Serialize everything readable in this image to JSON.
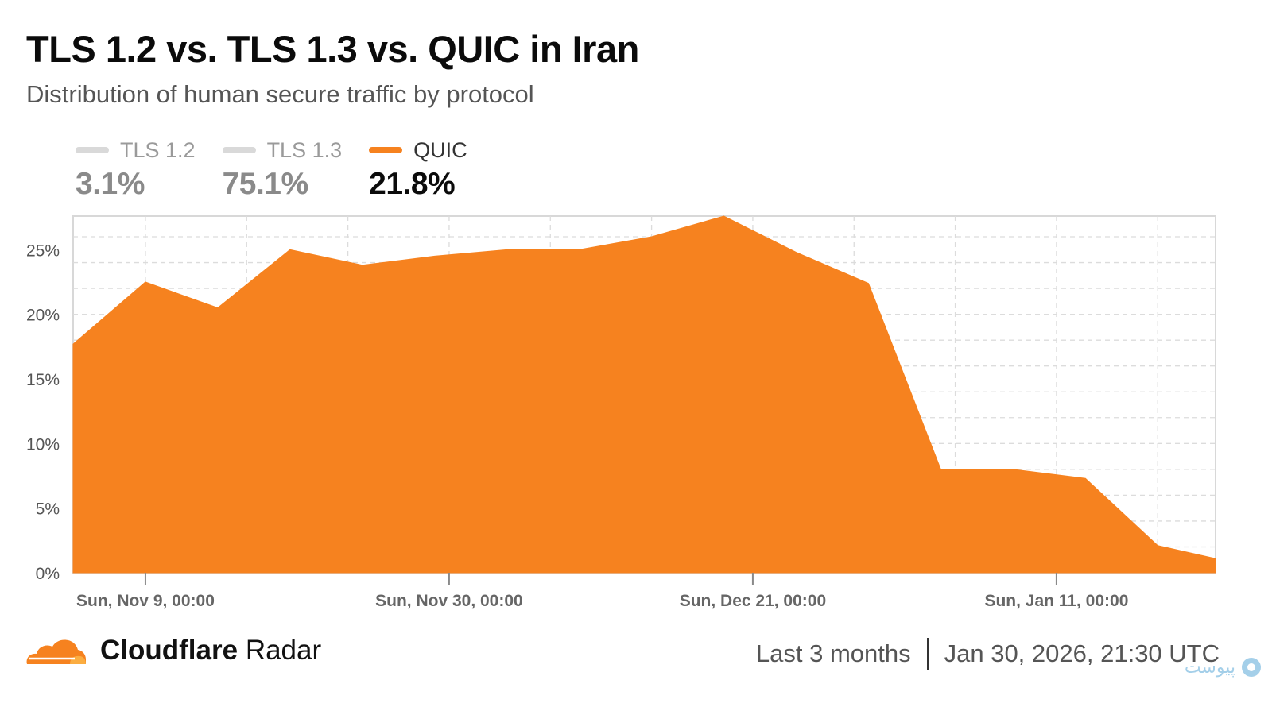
{
  "title": "TLS 1.2 vs. TLS 1.3 vs. QUIC in Iran",
  "subtitle": "Distribution of human secure traffic by protocol",
  "legend": [
    {
      "label": "TLS 1.2",
      "value": "3.1%",
      "color": "#d9d9d9",
      "state": "muted"
    },
    {
      "label": "TLS 1.3",
      "value": "75.1%",
      "color": "#d9d9d9",
      "state": "muted"
    },
    {
      "label": "QUIC",
      "value": "21.8%",
      "color": "#f6821f",
      "state": "active"
    }
  ],
  "chart_data": {
    "type": "area",
    "series": [
      {
        "name": "QUIC",
        "color": "#f6821f",
        "x": [
          "2025-11-04",
          "2025-11-09",
          "2025-11-14",
          "2025-11-19",
          "2025-11-24",
          "2025-11-29",
          "2025-12-04",
          "2025-12-09",
          "2025-12-14",
          "2025-12-19",
          "2025-12-24",
          "2025-12-29",
          "2026-01-03",
          "2026-01-08",
          "2026-01-13",
          "2026-01-18",
          "2026-01-22"
        ],
        "values": [
          17.7,
          22.5,
          20.5,
          25.0,
          23.8,
          24.5,
          25.0,
          25.0,
          26.0,
          27.6,
          24.8,
          22.4,
          8.0,
          8.0,
          7.3,
          2.1,
          1.1
        ]
      }
    ],
    "x_range": [
      "2025-11-04",
      "2026-01-22"
    ],
    "ylim": [
      0,
      27.6
    ],
    "y_ticks": [
      0,
      5,
      10,
      15,
      20,
      25
    ],
    "y_tick_labels": [
      "0%",
      "5%",
      "10%",
      "15%",
      "20%",
      "25%"
    ],
    "x_ticks": [
      "2025-11-09",
      "2025-11-30",
      "2025-12-21",
      "2026-01-11"
    ],
    "x_tick_labels": [
      "Sun, Nov 9, 00:00",
      "Sun, Nov 30, 00:00",
      "Sun, Dec 21, 00:00",
      "Sun, Jan 11, 00:00"
    ],
    "grid": true
  },
  "footer": {
    "brand_bold": "Cloudflare",
    "brand_regular": "Radar",
    "range": "Last 3 months",
    "timestamp": "Jan 30, 2026, 21:30 UTC"
  },
  "watermark": {
    "text": "پیوست"
  }
}
